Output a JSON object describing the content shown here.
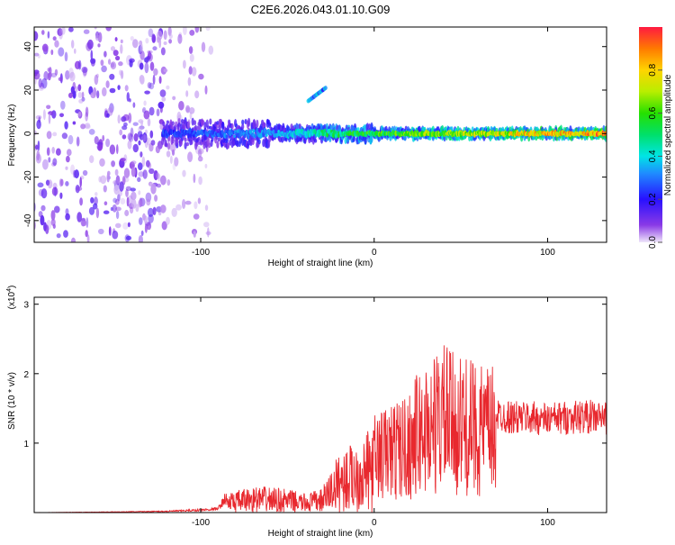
{
  "figure": {
    "title": "C2E6.2026.043.01.10.G09"
  },
  "chart_data": [
    {
      "type": "heatmap",
      "xlabel": "Height of straight line (km)",
      "ylabel": "Frequency (Hz)",
      "xlim": [
        -196,
        134
      ],
      "ylim": [
        -50,
        49
      ],
      "x_ticks": [
        -100,
        0,
        100
      ],
      "y_ticks": [
        -40,
        -20,
        0,
        20,
        40
      ],
      "colorbar": {
        "label": "Normalized spectral amplitude",
        "range": [
          0.0,
          1.0
        ],
        "ticks": [
          0.0,
          0.2,
          0.4,
          0.6,
          0.8
        ],
        "colormap": "rainbow (purple-blue-cyan-green-yellow-red)"
      },
      "features": [
        {
          "kind": "noise",
          "x_range": [
            -196,
            -120
          ],
          "y_range": [
            -50,
            49
          ],
          "amplitude": 0.1
        },
        {
          "kind": "noise",
          "x_range": [
            -120,
            -94
          ],
          "y_range": [
            -50,
            49
          ],
          "amplitude": 0.05
        },
        {
          "kind": "ridge",
          "x_range": [
            -122,
            134
          ],
          "center_frequency": 0,
          "amplitude_profile": [
            [
              -122,
              0.25
            ],
            [
              -60,
              0.35
            ],
            [
              -20,
              0.55
            ],
            [
              40,
              0.7
            ],
            [
              100,
              0.85
            ],
            [
              134,
              0.95
            ]
          ]
        },
        {
          "kind": "streak",
          "from": [
            -38,
            15
          ],
          "to": [
            -28,
            21
          ],
          "amplitude": 0.35
        }
      ]
    },
    {
      "type": "line",
      "xlabel": "Height of straight line (km)",
      "ylabel": "SNR (10 * v/v)",
      "y_multiplier": "(x10^4)",
      "xlim": [
        -196,
        134
      ],
      "ylim": [
        0,
        3.1
      ],
      "x_ticks": [
        -100,
        0,
        100
      ],
      "y_ticks": [
        1,
        2,
        3
      ],
      "color": "#e8282e",
      "series": [
        {
          "x": [
            -196,
            -150,
            -120,
            -100,
            -90,
            -86,
            -80,
            -70,
            -60,
            -50,
            -40,
            -30,
            -25,
            -20,
            -10,
            0,
            10,
            20,
            25,
            30,
            35,
            40,
            45,
            50,
            60,
            70,
            80,
            90,
            100,
            110,
            120,
            134
          ],
          "y": [
            0.0,
            0.01,
            0.02,
            0.04,
            0.06,
            0.22,
            0.25,
            0.3,
            0.3,
            0.27,
            0.22,
            0.28,
            0.5,
            0.7,
            0.85,
            1.0,
            1.1,
            1.2,
            1.4,
            1.5,
            1.6,
            1.7,
            1.6,
            1.55,
            1.5,
            1.45,
            1.4,
            1.4,
            1.38,
            1.4,
            1.42,
            1.4
          ]
        }
      ]
    }
  ]
}
